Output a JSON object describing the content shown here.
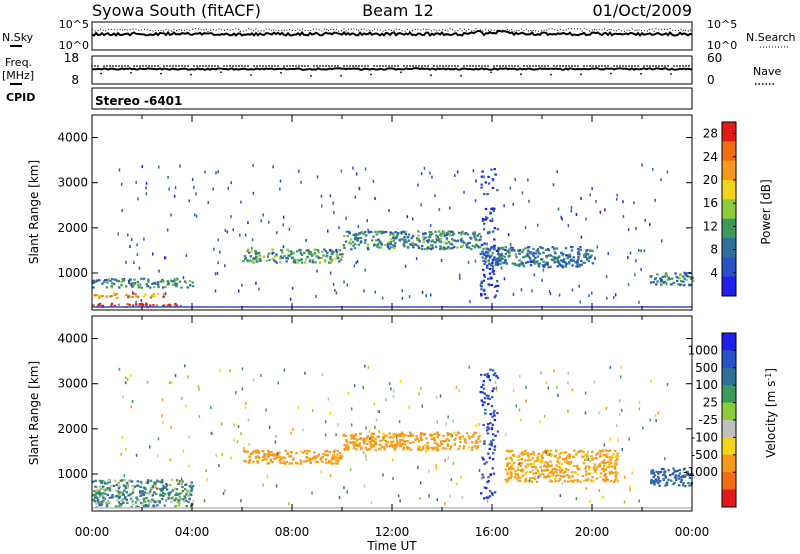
{
  "header": {
    "station": "Syowa South (fitACF)",
    "beam": "Beam 12",
    "date": "01/Oct/2009"
  },
  "nsky_panel": {
    "left_label": "N.Sky",
    "right_label": "N.Search",
    "left_ticks": [
      "10^5",
      "10^0"
    ],
    "right_ticks": [
      "10^5",
      "10^0"
    ]
  },
  "freq_panel": {
    "left_label": "Freq.",
    "left_unit": "[MHz]",
    "right_label": "Nave",
    "left_ticks": [
      "18",
      "8"
    ],
    "right_ticks": [
      "60",
      "0"
    ]
  },
  "cpid_panel": {
    "label": "CPID",
    "value": "Stereo -6401"
  },
  "colors": {
    "power_scale": [
      "#1f1fe8",
      "#2a52c8",
      "#2f6f99",
      "#3d9a5c",
      "#8ccc3a",
      "#f2d21a",
      "#f59a1a",
      "#f06d14",
      "#e21a1a"
    ],
    "velocity_scale": [
      "#1f1fe8",
      "#2a52c8",
      "#2f6f99",
      "#3d9a5c",
      "#8ccc3a",
      "#c0c0c0",
      "#f2d21a",
      "#f59a1a",
      "#f06d14",
      "#e21a1a"
    ]
  },
  "chart_data": [
    {
      "type": "heatmap",
      "title": "",
      "xlabel": "",
      "ylabel": "Slant Range [km]",
      "xlim": [
        "00:00",
        "00:00"
      ],
      "ylim": [
        180,
        4500
      ],
      "x_ticks": [
        "00:00",
        "04:00",
        "08:00",
        "12:00",
        "16:00",
        "20:00",
        "00:00"
      ],
      "y_ticks": [
        1000,
        2000,
        3000,
        4000
      ],
      "colorbar": {
        "label": "Power [dB]",
        "range": [
          0,
          30
        ],
        "ticks": [
          4,
          8,
          12,
          16,
          20,
          24,
          28
        ]
      },
      "echo_regions": [
        {
          "from_hour": 0.0,
          "to_hour": 3.6,
          "range_km": [
            220,
            300
          ],
          "level_db": 29
        },
        {
          "from_hour": 0.0,
          "to_hour": 3.0,
          "range_km": [
            420,
            520
          ],
          "level_db": 22
        },
        {
          "from_hour": 0.0,
          "to_hour": 4.0,
          "range_km": [
            650,
            850
          ],
          "level_db": 10
        },
        {
          "from_hour": 6.0,
          "to_hour": 10.0,
          "range_km": [
            1200,
            1500
          ],
          "level_db": 12
        },
        {
          "from_hour": 10.0,
          "to_hour": 15.5,
          "range_km": [
            1500,
            1900
          ],
          "level_db": 10
        },
        {
          "from_hour": 15.5,
          "to_hour": 20.0,
          "range_km": [
            1100,
            1550
          ],
          "level_db": 8
        },
        {
          "from_hour": 15.5,
          "to_hour": 16.2,
          "range_km": [
            400,
            3300
          ],
          "level_db": 4
        },
        {
          "from_hour": 22.3,
          "to_hour": 24.0,
          "range_km": [
            700,
            1000
          ],
          "level_db": 9
        }
      ]
    },
    {
      "type": "heatmap",
      "title": "",
      "xlabel": "Time UT",
      "ylabel": "Slant Range [km]",
      "xlim": [
        "00:00",
        "00:00"
      ],
      "ylim": [
        180,
        4500
      ],
      "x_ticks": [
        "00:00",
        "04:00",
        "08:00",
        "12:00",
        "16:00",
        "20:00",
        "00:00"
      ],
      "y_ticks": [
        1000,
        2000,
        3000,
        4000
      ],
      "colorbar": {
        "label": "Velocity [m s",
        "label_sup": "-1",
        "label_close": "]",
        "ticks": [
          "1000",
          "500",
          "100",
          "25",
          "-25",
          "-100",
          "-500",
          "-1000"
        ]
      },
      "echo_regions": [
        {
          "from_hour": 0.0,
          "to_hour": 4.0,
          "range_km": [
            230,
            850
          ],
          "velocity_mps": 100
        },
        {
          "from_hour": 6.0,
          "to_hour": 10.0,
          "range_km": [
            1200,
            1500
          ],
          "velocity_mps": -300
        },
        {
          "from_hour": 10.0,
          "to_hour": 15.5,
          "range_km": [
            1500,
            1900
          ],
          "velocity_mps": -200
        },
        {
          "from_hour": 15.5,
          "to_hour": 16.2,
          "range_km": [
            400,
            3300
          ],
          "velocity_mps": 800
        },
        {
          "from_hour": 16.5,
          "to_hour": 21.0,
          "range_km": [
            800,
            1500
          ],
          "velocity_mps": -150
        },
        {
          "from_hour": 22.3,
          "to_hour": 24.0,
          "range_km": [
            700,
            1100
          ],
          "velocity_mps": 400
        }
      ]
    }
  ]
}
